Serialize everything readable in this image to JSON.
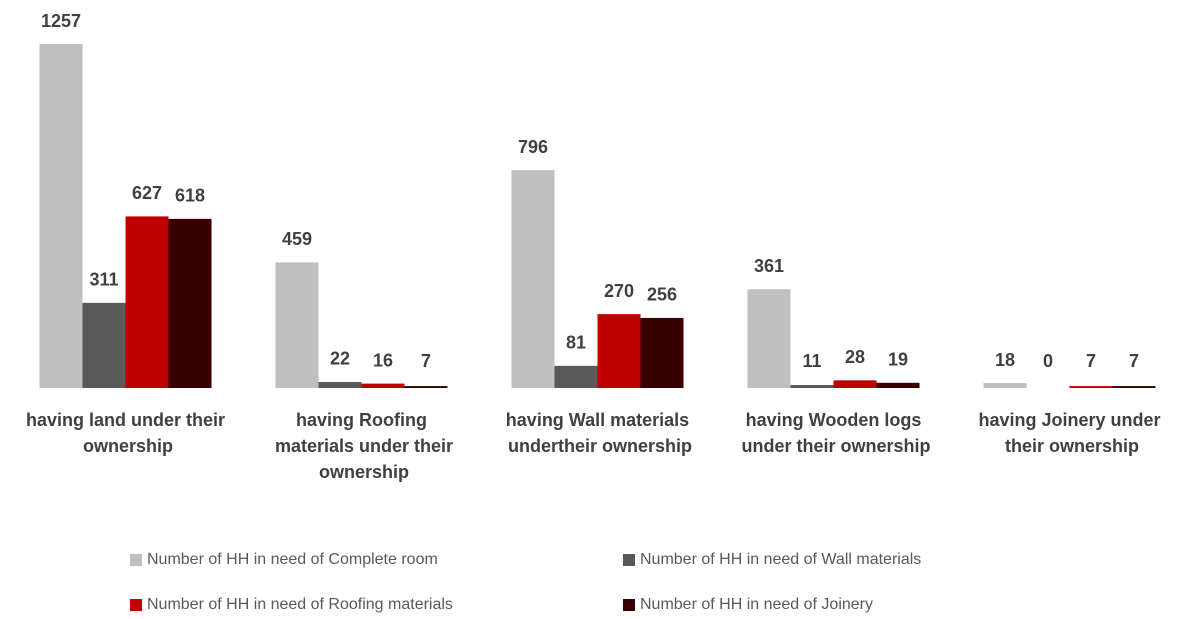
{
  "chart_data": {
    "type": "bar",
    "categories": [
      "having land under their ownership",
      "having Roofing materials under their ownership",
      "having Wall materials undertheir ownership",
      "having Wooden logs under their ownership",
      "having Joinery under their ownership"
    ],
    "series": [
      {
        "name": "Number of HH in need of Complete room",
        "color": "#bfbfbf",
        "values": [
          1257,
          459,
          796,
          361,
          18
        ]
      },
      {
        "name": "Number of HH in need of Wall materials",
        "color": "#595959",
        "values": [
          311,
          22,
          81,
          11,
          0
        ]
      },
      {
        "name": "Number of HH in need of Roofing materials",
        "color": "#c00000",
        "values": [
          627,
          16,
          270,
          28,
          7
        ]
      },
      {
        "name": "Number of HH in need of Joinery",
        "color": "#3a0000",
        "values": [
          618,
          7,
          256,
          19,
          7
        ]
      }
    ]
  }
}
